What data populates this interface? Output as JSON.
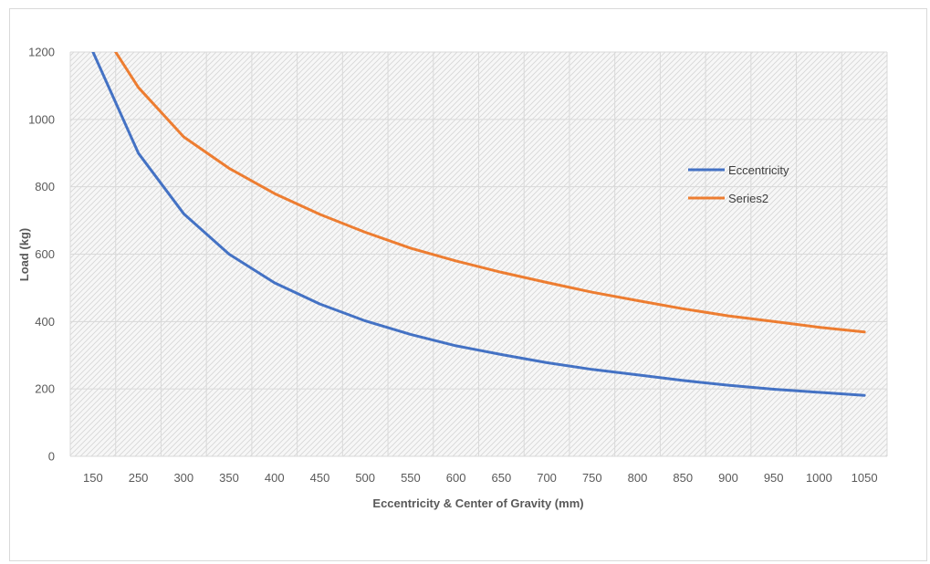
{
  "chart_data": {
    "type": "line",
    "title": "",
    "xlabel": "Eccentricity & Center of Gravity (mm)",
    "ylabel": "Load (kg)",
    "categories": [
      "150",
      "250",
      "300",
      "350",
      "400",
      "450",
      "500",
      "550",
      "600",
      "650",
      "700",
      "750",
      "800",
      "850",
      "900",
      "950",
      "1000",
      "1050"
    ],
    "ylim": [
      0,
      1200
    ],
    "yticks": [
      0,
      200,
      400,
      600,
      800,
      1000,
      1200
    ],
    "grid": true,
    "legend_position": "right",
    "series": [
      {
        "name": "Eccentricity",
        "color": "#4472c4",
        "values": [
          1200,
          900,
          720,
          600,
          515,
          452,
          402,
          362,
          328,
          302,
          278,
          258,
          242,
          225,
          211,
          199,
          190,
          181
        ]
      },
      {
        "name": "Series2",
        "color": "#ed7d31",
        "values_from_index": 0.5,
        "values": [
          1200,
          1095,
          948,
          855,
          780,
          718,
          665,
          618,
          580,
          546,
          516,
          487,
          462,
          438,
          417,
          400,
          383,
          369
        ]
      }
    ]
  }
}
